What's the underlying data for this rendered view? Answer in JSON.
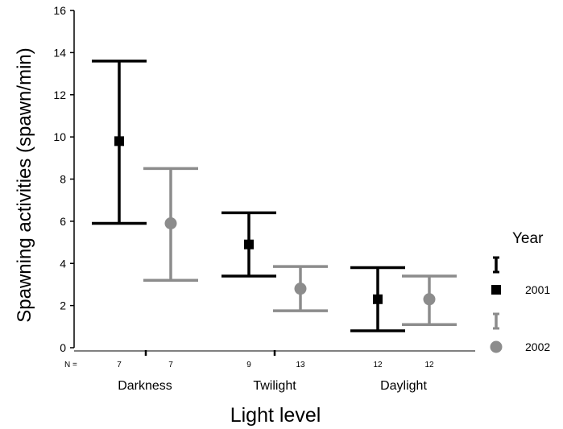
{
  "chart_data": {
    "type": "error-bar",
    "xlabel": "Light level",
    "ylabel": "Spawning activities (spawn/min)",
    "ylim": [
      0,
      16
    ],
    "yticks": [
      0,
      2,
      4,
      6,
      8,
      10,
      12,
      14,
      16
    ],
    "categories": [
      "Darkness",
      "Twilight",
      "Daylight"
    ],
    "n_label": "N =",
    "legend_title": "Year",
    "series": [
      {
        "name": "2001",
        "color": "#000000",
        "marker": "square",
        "points": [
          {
            "category": "Darkness",
            "mean": 9.8,
            "low": 5.9,
            "high": 13.6,
            "n": "7"
          },
          {
            "category": "Twilight",
            "mean": 4.9,
            "low": 3.4,
            "high": 6.4,
            "n": "9"
          },
          {
            "category": "Daylight",
            "mean": 2.3,
            "low": 0.8,
            "high": 3.8,
            "n": "12"
          }
        ]
      },
      {
        "name": "2002",
        "color": "#8c8c8c",
        "marker": "circle",
        "points": [
          {
            "category": "Darkness",
            "mean": 5.9,
            "low": 3.2,
            "high": 8.5,
            "n": "7"
          },
          {
            "category": "Twilight",
            "mean": 2.8,
            "low": 1.75,
            "high": 3.85,
            "n": "13"
          },
          {
            "category": "Daylight",
            "mean": 2.3,
            "low": 1.1,
            "high": 3.4,
            "n": "12"
          }
        ]
      }
    ]
  }
}
